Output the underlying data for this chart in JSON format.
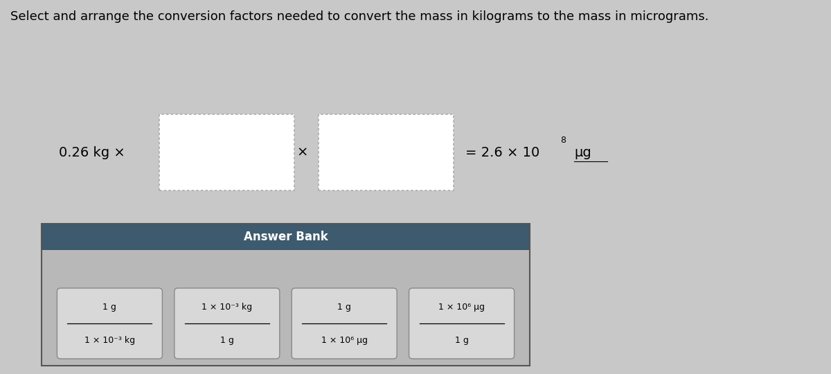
{
  "title": "Select and arrange the conversion factors needed to convert the mass in kilograms to the mass in micrograms.",
  "title_fontsize": 13,
  "bg_color": "#c8c8c8",
  "answer_bank_bg": "#3d5a6e",
  "answer_bank_text": "Answer Bank",
  "answer_bank_items": [
    {
      "top": "1 g",
      "bottom": "1 × 10⁻³ kg"
    },
    {
      "top": "1 × 10⁻³ kg",
      "bottom": "1 g"
    },
    {
      "top": "1 g",
      "bottom": "1 × 10⁶ μg"
    },
    {
      "top": "1 × 10⁶ μg",
      "bottom": "1 g"
    }
  ]
}
